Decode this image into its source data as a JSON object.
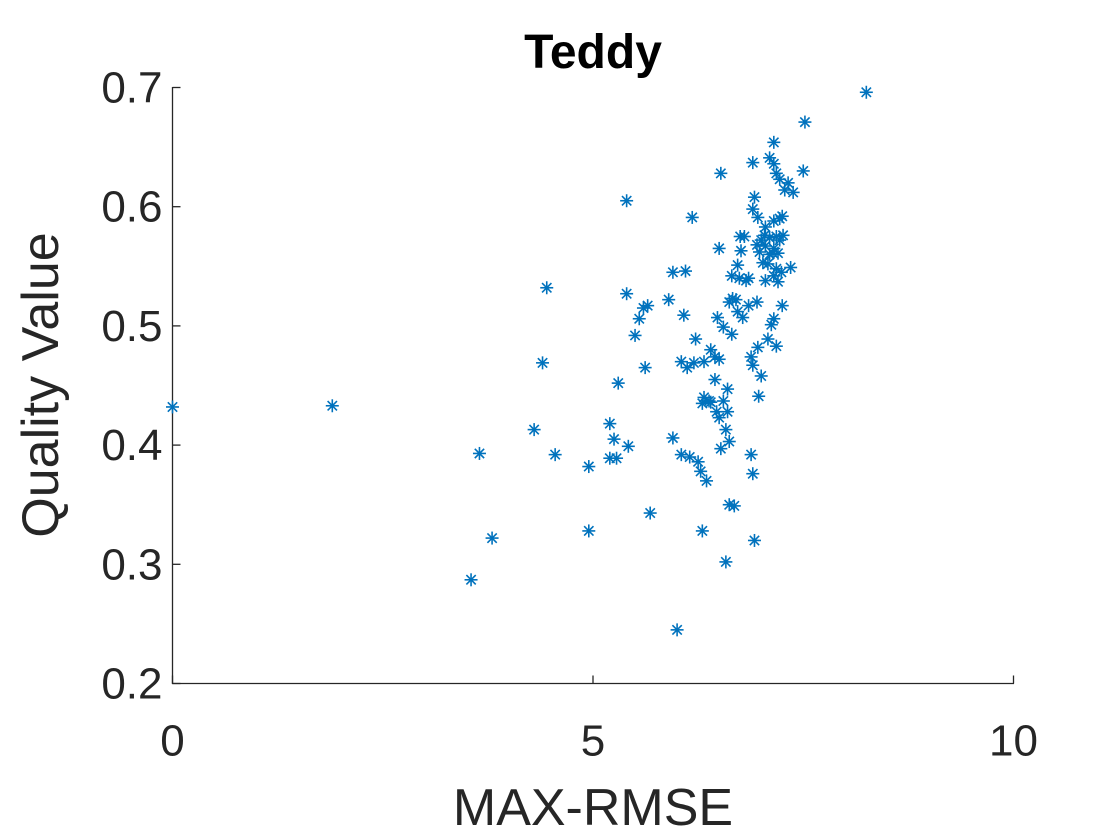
{
  "chart_data": {
    "type": "scatter",
    "title": "Teddy",
    "xlabel": "MAX-RMSE",
    "ylabel": "Quality Value",
    "xlim": [
      0,
      10
    ],
    "ylim": [
      0.2,
      0.7
    ],
    "xticks": [
      0,
      5,
      10
    ],
    "xtick_labels": [
      "0",
      "5",
      "10"
    ],
    "yticks": [
      0.2,
      0.3,
      0.4,
      0.5,
      0.6,
      0.7
    ],
    "ytick_labels": [
      "0.2",
      "0.3",
      "0.4",
      "0.5",
      "0.6",
      "0.7"
    ],
    "grid": false,
    "marker": "asterisk",
    "color": "#0072BD",
    "series": [
      {
        "points": [
          [
            0.0,
            0.432
          ],
          [
            1.9,
            0.433
          ],
          [
            3.55,
            0.287
          ],
          [
            3.65,
            0.393
          ],
          [
            3.8,
            0.322
          ],
          [
            4.3,
            0.413
          ],
          [
            4.4,
            0.469
          ],
          [
            4.45,
            0.532
          ],
          [
            4.55,
            0.392
          ],
          [
            4.95,
            0.382
          ],
          [
            4.95,
            0.328
          ],
          [
            5.2,
            0.418
          ],
          [
            5.2,
            0.389
          ],
          [
            5.25,
            0.405
          ],
          [
            5.28,
            0.389
          ],
          [
            5.3,
            0.452
          ],
          [
            5.4,
            0.605
          ],
          [
            5.4,
            0.527
          ],
          [
            5.42,
            0.399
          ],
          [
            5.5,
            0.492
          ],
          [
            5.55,
            0.506
          ],
          [
            5.6,
            0.515
          ],
          [
            5.62,
            0.465
          ],
          [
            5.65,
            0.517
          ],
          [
            5.68,
            0.343
          ],
          [
            5.9,
            0.522
          ],
          [
            5.95,
            0.545
          ],
          [
            5.95,
            0.406
          ],
          [
            6.0,
            0.245
          ],
          [
            6.05,
            0.47
          ],
          [
            6.05,
            0.392
          ],
          [
            6.08,
            0.509
          ],
          [
            6.1,
            0.546
          ],
          [
            6.12,
            0.465
          ],
          [
            6.15,
            0.39
          ],
          [
            6.18,
            0.591
          ],
          [
            6.2,
            0.469
          ],
          [
            6.22,
            0.489
          ],
          [
            6.25,
            0.386
          ],
          [
            6.28,
            0.378
          ],
          [
            6.3,
            0.328
          ],
          [
            6.3,
            0.435
          ],
          [
            6.32,
            0.47
          ],
          [
            6.32,
            0.44
          ],
          [
            6.35,
            0.37
          ],
          [
            6.38,
            0.437
          ],
          [
            6.4,
            0.48
          ],
          [
            6.4,
            0.436
          ],
          [
            6.45,
            0.474
          ],
          [
            6.45,
            0.455
          ],
          [
            6.47,
            0.428
          ],
          [
            6.48,
            0.507
          ],
          [
            6.5,
            0.565
          ],
          [
            6.5,
            0.472
          ],
          [
            6.5,
            0.423
          ],
          [
            6.52,
            0.628
          ],
          [
            6.52,
            0.397
          ],
          [
            6.55,
            0.499
          ],
          [
            6.55,
            0.437
          ],
          [
            6.58,
            0.302
          ],
          [
            6.58,
            0.413
          ],
          [
            6.6,
            0.447
          ],
          [
            6.6,
            0.428
          ],
          [
            6.62,
            0.52
          ],
          [
            6.62,
            0.403
          ],
          [
            6.62,
            0.35
          ],
          [
            6.65,
            0.542
          ],
          [
            6.65,
            0.493
          ],
          [
            6.66,
            0.523
          ],
          [
            6.68,
            0.349
          ],
          [
            6.7,
            0.522
          ],
          [
            6.72,
            0.512
          ],
          [
            6.72,
            0.551
          ],
          [
            6.74,
            0.54
          ],
          [
            6.75,
            0.575
          ],
          [
            6.76,
            0.563
          ],
          [
            6.78,
            0.507
          ],
          [
            6.8,
            0.575
          ],
          [
            6.82,
            0.538
          ],
          [
            6.85,
            0.54
          ],
          [
            6.85,
            0.517
          ],
          [
            6.88,
            0.392
          ],
          [
            6.88,
            0.474
          ],
          [
            6.9,
            0.637
          ],
          [
            6.9,
            0.598
          ],
          [
            6.9,
            0.467
          ],
          [
            6.9,
            0.376
          ],
          [
            6.92,
            0.32
          ],
          [
            6.92,
            0.608
          ],
          [
            6.95,
            0.568
          ],
          [
            6.95,
            0.52
          ],
          [
            6.96,
            0.591
          ],
          [
            6.96,
            0.482
          ],
          [
            6.97,
            0.441
          ],
          [
            6.98,
            0.562
          ],
          [
            7.0,
            0.572
          ],
          [
            7.0,
            0.458
          ],
          [
            7.02,
            0.553
          ],
          [
            7.04,
            0.576
          ],
          [
            7.05,
            0.583
          ],
          [
            7.05,
            0.567
          ],
          [
            7.05,
            0.538
          ],
          [
            7.08,
            0.552
          ],
          [
            7.08,
            0.489
          ],
          [
            7.1,
            0.641
          ],
          [
            7.1,
            0.574
          ],
          [
            7.1,
            0.56
          ],
          [
            7.12,
            0.501
          ],
          [
            7.14,
            0.561
          ],
          [
            7.15,
            0.636
          ],
          [
            7.15,
            0.654
          ],
          [
            7.15,
            0.588
          ],
          [
            7.15,
            0.565
          ],
          [
            7.15,
            0.542
          ],
          [
            7.15,
            0.506
          ],
          [
            7.18,
            0.628
          ],
          [
            7.18,
            0.575
          ],
          [
            7.18,
            0.548
          ],
          [
            7.18,
            0.483
          ],
          [
            7.2,
            0.537
          ],
          [
            7.2,
            0.561
          ],
          [
            7.22,
            0.59
          ],
          [
            7.22,
            0.623
          ],
          [
            7.22,
            0.572
          ],
          [
            7.24,
            0.545
          ],
          [
            7.25,
            0.517
          ],
          [
            7.25,
            0.592
          ],
          [
            7.26,
            0.576
          ],
          [
            7.28,
            0.614
          ],
          [
            7.32,
            0.62
          ],
          [
            7.35,
            0.549
          ],
          [
            7.38,
            0.612
          ],
          [
            7.5,
            0.63
          ],
          [
            7.52,
            0.671
          ],
          [
            8.25,
            0.696
          ]
        ]
      }
    ]
  }
}
